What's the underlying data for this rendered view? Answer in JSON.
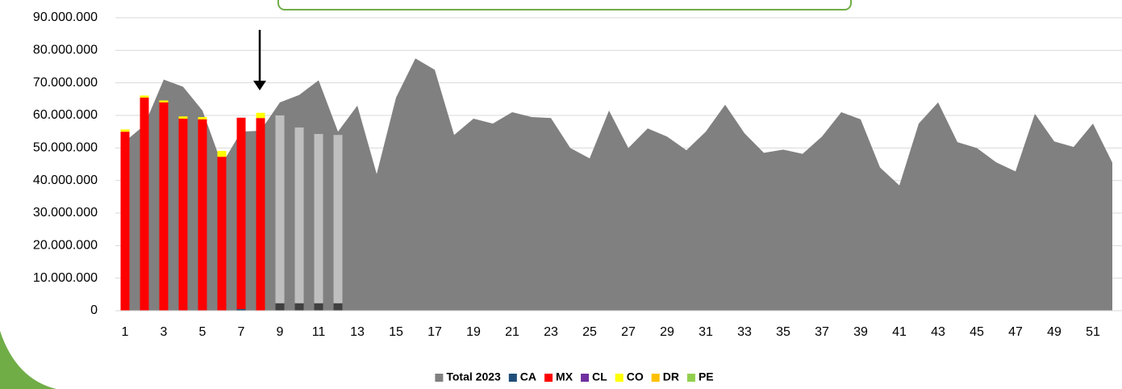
{
  "chart_data": {
    "type": "bar",
    "categories": [
      1,
      null,
      3,
      null,
      5,
      null,
      7,
      null,
      9,
      null,
      11,
      null,
      13,
      null,
      15,
      null,
      17,
      null,
      19,
      null,
      21,
      null,
      23,
      null,
      25,
      null,
      27,
      null,
      29,
      null,
      31,
      null,
      33,
      null,
      35,
      null,
      37,
      null,
      39,
      null,
      41,
      null,
      43,
      null,
      45,
      null,
      47,
      null,
      49,
      null,
      51,
      null
    ],
    "series": [
      {
        "name": "Total 2023",
        "type": "area",
        "color": "#808080",
        "values": [
          52000000,
          57000000,
          71000000,
          68800000,
          61500000,
          45000000,
          55000000,
          55300000,
          64000000,
          66300000,
          70800000,
          55000000,
          63000000,
          42000000,
          65500000,
          77500000,
          74000000,
          54000000,
          59000000,
          57500000,
          61000000,
          59500000,
          59200000,
          50000000,
          46800000,
          61500000,
          50000000,
          56000000,
          53500000,
          49300000,
          55000000,
          63300000,
          54500000,
          48500000,
          49500000,
          48200000,
          53500000,
          61000000,
          58800000,
          44000000,
          38500000,
          57500000,
          64000000,
          51800000,
          50000000,
          45600000,
          42800000,
          60500000,
          52000000,
          50300000,
          57500000,
          45500000
        ]
      },
      {
        "name": "CA",
        "type": "bar",
        "color": "#1f4e79",
        "values": [
          0,
          0,
          0,
          0,
          0,
          0,
          500000,
          0,
          null,
          null,
          null,
          null,
          null,
          null,
          null,
          null,
          null,
          null,
          null,
          null,
          null,
          null,
          null,
          null,
          null,
          null,
          null,
          null,
          null,
          null,
          null,
          null,
          null,
          null,
          null,
          null,
          null,
          null,
          null,
          null,
          null,
          null,
          null,
          null,
          null,
          null,
          null,
          null,
          null,
          null,
          null,
          null
        ]
      },
      {
        "name": "MX",
        "type": "bar",
        "color": "#ff0000",
        "values": [
          55000000,
          65500000,
          64000000,
          59000000,
          58800000,
          47300000,
          58800000,
          59200000,
          null,
          null,
          null,
          null,
          null,
          null,
          null,
          null,
          null,
          null,
          null,
          null,
          null,
          null,
          null,
          null,
          null,
          null,
          null,
          null,
          null,
          null,
          null,
          null,
          null,
          null,
          null,
          null,
          null,
          null,
          null,
          null,
          null,
          null,
          null,
          null,
          null,
          null,
          null,
          null,
          null,
          null,
          null,
          null
        ]
      },
      {
        "name": "CL",
        "type": "bar",
        "color": "#7030a0",
        "values": [
          0,
          0,
          0,
          0,
          0,
          0,
          0,
          0,
          null,
          null,
          null,
          null,
          null,
          null,
          null,
          null,
          null,
          null,
          null,
          null,
          null,
          null,
          null,
          null,
          null,
          null,
          null,
          null,
          null,
          null,
          null,
          null,
          null,
          null,
          null,
          null,
          null,
          null,
          null,
          null,
          null,
          null,
          null,
          null,
          null,
          null,
          null,
          null,
          null,
          null,
          null,
          null
        ]
      },
      {
        "name": "CO",
        "type": "bar",
        "color": "#ffff00",
        "values": [
          700000,
          600000,
          600000,
          700000,
          700000,
          1800000,
          0,
          1600000,
          null,
          null,
          null,
          null,
          null,
          null,
          null,
          null,
          null,
          null,
          null,
          null,
          null,
          null,
          null,
          null,
          null,
          null,
          null,
          null,
          null,
          null,
          null,
          null,
          null,
          null,
          null,
          null,
          null,
          null,
          null,
          null,
          null,
          null,
          null,
          null,
          null,
          null,
          null,
          null,
          null,
          null,
          null,
          null
        ]
      },
      {
        "name": "DR",
        "type": "bar",
        "color": "#ffc000",
        "values": [
          0,
          0,
          0,
          0,
          0,
          0,
          0,
          0,
          null,
          null,
          null,
          null,
          null,
          null,
          null,
          null,
          null,
          null,
          null,
          null,
          null,
          null,
          null,
          null,
          null,
          null,
          null,
          null,
          null,
          null,
          null,
          null,
          null,
          null,
          null,
          null,
          null,
          null,
          null,
          null,
          null,
          null,
          null,
          null,
          null,
          null,
          null,
          null,
          null,
          null,
          null,
          null
        ]
      },
      {
        "name": "PE",
        "type": "bar",
        "color": "#92d050",
        "values": [
          0,
          0,
          0,
          0,
          0,
          0,
          0,
          0,
          null,
          null,
          null,
          null,
          null,
          null,
          null,
          null,
          null,
          null,
          null,
          null,
          null,
          null,
          null,
          null,
          null,
          null,
          null,
          null,
          null,
          null,
          null,
          null,
          null,
          null,
          null,
          null,
          null,
          null,
          null,
          null,
          null,
          null,
          null,
          null,
          null,
          null,
          null,
          null,
          null,
          null,
          null,
          null
        ]
      },
      {
        "type": "bar",
        "color": "#404040",
        "values": [
          null,
          null,
          null,
          null,
          null,
          null,
          null,
          null,
          2300000,
          2300000,
          2300000,
          2300000,
          null,
          null,
          null,
          null,
          null,
          null,
          null,
          null,
          null,
          null,
          null,
          null,
          null,
          null,
          null,
          null,
          null,
          null,
          null,
          null,
          null,
          null,
          null,
          null,
          null,
          null,
          null,
          null,
          null,
          null,
          null,
          null,
          null,
          null,
          null,
          null,
          null,
          null,
          null,
          null
        ]
      },
      {
        "type": "bar",
        "color": "#bfbfbf",
        "values": [
          null,
          null,
          null,
          null,
          null,
          null,
          null,
          null,
          57700000,
          54000000,
          52000000,
          51700000,
          null,
          null,
          null,
          null,
          null,
          null,
          null,
          null,
          null,
          null,
          null,
          null,
          null,
          null,
          null,
          null,
          null,
          null,
          null,
          null,
          null,
          null,
          null,
          null,
          null,
          null,
          null,
          null,
          null,
          null,
          null,
          null,
          null,
          null,
          null,
          null,
          null,
          null,
          null,
          null
        ]
      }
    ],
    "ylim": [
      0,
      90000000
    ],
    "yticks": [
      0,
      {
        "value": 10000000,
        "label": "10.000.000"
      },
      {
        "value": 20000000,
        "label": "20.000.000"
      },
      {
        "value": 30000000,
        "label": "30.000.000"
      },
      {
        "value": 40000000,
        "label": "40.000.000"
      },
      {
        "value": 50000000,
        "label": "50.000.000"
      },
      {
        "value": 60000000,
        "label": "60.000.000"
      },
      {
        "value": 70000000,
        "label": "70.000.000"
      },
      {
        "value": 80000000,
        "label": "80.000.000"
      },
      {
        "value": 90000000,
        "label": "90.000.000"
      }
    ],
    "grid": true,
    "legend": "bottom"
  }
}
